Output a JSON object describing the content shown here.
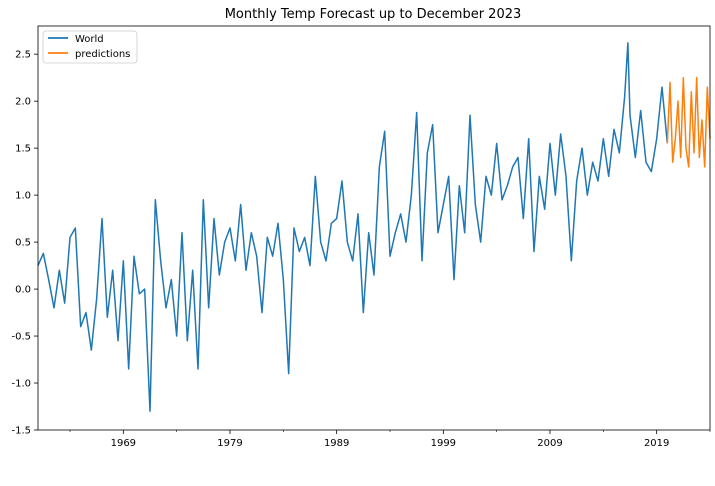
{
  "chart_data": {
    "type": "line",
    "title": "Monthly Temp Forecast up to December 2023",
    "xlabel": "",
    "ylabel": "",
    "xlim": [
      1961.0,
      2024.0
    ],
    "ylim": [
      -1.5,
      2.8
    ],
    "grid": false,
    "legend_position": "top-left",
    "x_ticks": [
      1969,
      1979,
      1989,
      1999,
      2009,
      2019
    ],
    "y_ticks": [
      -1.5,
      -1.0,
      -0.5,
      0.0,
      0.5,
      1.0,
      1.5,
      2.0,
      2.5
    ],
    "series": [
      {
        "name": "World",
        "color": "#1f77b4",
        "x": [
          1961.0,
          1961.5,
          1962.0,
          1962.5,
          1963.0,
          1963.5,
          1964.0,
          1964.5,
          1965.0,
          1965.5,
          1966.0,
          1966.5,
          1967.0,
          1967.5,
          1968.0,
          1968.5,
          1969.0,
          1969.5,
          1970.0,
          1970.5,
          1971.0,
          1971.5,
          1972.0,
          1972.5,
          1973.0,
          1973.5,
          1974.0,
          1974.5,
          1975.0,
          1975.5,
          1976.0,
          1976.5,
          1977.0,
          1977.5,
          1978.0,
          1978.5,
          1979.0,
          1979.5,
          1980.0,
          1980.5,
          1981.0,
          1981.5,
          1982.0,
          1982.5,
          1983.0,
          1983.5,
          1984.0,
          1984.5,
          1985.0,
          1985.5,
          1986.0,
          1986.5,
          1987.0,
          1987.5,
          1988.0,
          1988.5,
          1989.0,
          1989.5,
          1990.0,
          1990.5,
          1991.0,
          1991.5,
          1992.0,
          1992.5,
          1993.0,
          1993.5,
          1994.0,
          1994.5,
          1995.0,
          1995.5,
          1996.0,
          1996.5,
          1997.0,
          1997.5,
          1998.0,
          1998.5,
          1999.0,
          1999.5,
          2000.0,
          2000.5,
          2001.0,
          2001.5,
          2002.0,
          2002.5,
          2003.0,
          2003.5,
          2004.0,
          2004.5,
          2005.0,
          2005.5,
          2006.0,
          2006.5,
          2007.0,
          2007.5,
          2008.0,
          2008.5,
          2009.0,
          2009.5,
          2010.0,
          2010.5,
          2011.0,
          2011.5,
          2012.0,
          2012.5,
          2013.0,
          2013.5,
          2014.0,
          2014.5,
          2015.0,
          2015.5,
          2016.0,
          2016.3,
          2016.5,
          2017.0,
          2017.5,
          2018.0,
          2018.5,
          2019.0,
          2019.5,
          2020.0
        ],
        "values": [
          0.25,
          0.38,
          0.1,
          -0.2,
          0.2,
          -0.15,
          0.55,
          0.65,
          -0.4,
          -0.25,
          -0.65,
          -0.1,
          0.75,
          -0.3,
          0.2,
          -0.55,
          0.3,
          -0.85,
          0.35,
          -0.05,
          0.0,
          -1.3,
          0.95,
          0.3,
          -0.2,
          0.1,
          -0.5,
          0.6,
          -0.55,
          0.2,
          -0.85,
          0.95,
          -0.2,
          0.75,
          0.15,
          0.5,
          0.65,
          0.3,
          0.9,
          0.2,
          0.6,
          0.35,
          -0.25,
          0.55,
          0.35,
          0.7,
          0.1,
          -0.9,
          0.65,
          0.4,
          0.55,
          0.25,
          1.2,
          0.5,
          0.3,
          0.7,
          0.75,
          1.15,
          0.5,
          0.3,
          0.8,
          -0.25,
          0.6,
          0.15,
          1.3,
          1.68,
          0.35,
          0.6,
          0.8,
          0.5,
          1.0,
          1.88,
          0.3,
          1.45,
          1.75,
          0.6,
          0.9,
          1.2,
          0.1,
          1.1,
          0.6,
          1.85,
          0.9,
          0.5,
          1.2,
          1.0,
          1.55,
          0.95,
          1.1,
          1.3,
          1.4,
          0.75,
          1.6,
          0.4,
          1.2,
          0.85,
          1.55,
          1.0,
          1.65,
          1.2,
          0.3,
          1.15,
          1.5,
          1.0,
          1.35,
          1.15,
          1.6,
          1.2,
          1.7,
          1.45,
          2.05,
          2.62,
          1.85,
          1.4,
          1.9,
          1.35,
          1.25,
          1.6,
          2.15,
          1.55
        ]
      },
      {
        "name": "predictions",
        "color": "#ff7f0e",
        "x": [
          2020.0,
          2020.25,
          2020.5,
          2020.75,
          2021.0,
          2021.25,
          2021.5,
          2021.75,
          2022.0,
          2022.25,
          2022.5,
          2022.75,
          2023.0,
          2023.25,
          2023.5,
          2023.75,
          2024.0
        ],
        "values": [
          1.55,
          2.2,
          1.35,
          1.6,
          2.0,
          1.4,
          2.25,
          1.5,
          1.3,
          2.1,
          1.45,
          2.25,
          1.4,
          1.8,
          1.3,
          2.15,
          1.6
        ]
      }
    ]
  }
}
